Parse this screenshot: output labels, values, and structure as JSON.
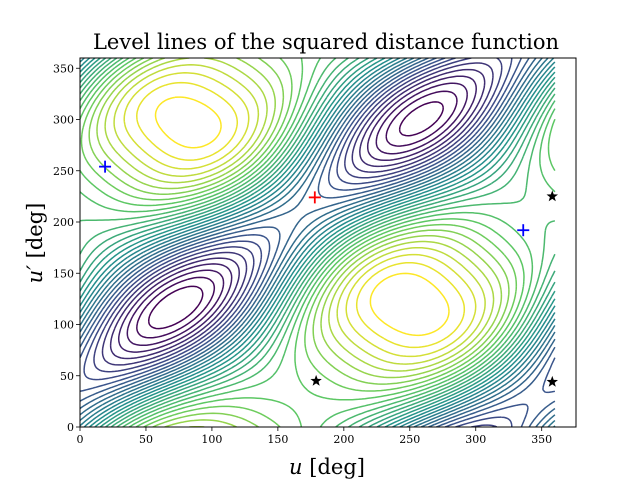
{
  "chart_data": {
    "type": "contour",
    "title": "Level lines of the squared distance function",
    "xlabel_var": "u",
    "ylabel_var": "u′",
    "xlabel_unit": " [deg]",
    "ylabel_unit": " [deg]",
    "xlim": [
      0,
      376
    ],
    "ylim": [
      0,
      360
    ],
    "xticks": [
      0,
      50,
      100,
      150,
      200,
      250,
      300,
      350
    ],
    "yticks": [
      0,
      50,
      100,
      150,
      200,
      250,
      300,
      350
    ],
    "domain_max_deg": 360,
    "colormap": [
      "#440154",
      "#3b528b",
      "#21918c",
      "#5ec962",
      "#fde725"
    ],
    "markers": [
      {
        "type": "plus",
        "color": "#ff0000",
        "x": 178,
        "y": 224
      },
      {
        "type": "plus",
        "color": "#0000ff",
        "x": 19,
        "y": 254
      },
      {
        "type": "plus",
        "color": "#0000ff",
        "x": 336,
        "y": 192
      },
      {
        "type": "star",
        "color": "#000000",
        "x": 179,
        "y": 45
      },
      {
        "type": "star",
        "color": "#000000",
        "x": 358,
        "y": 225
      },
      {
        "type": "star",
        "color": "#000000",
        "x": 358,
        "y": 44
      }
    ]
  }
}
